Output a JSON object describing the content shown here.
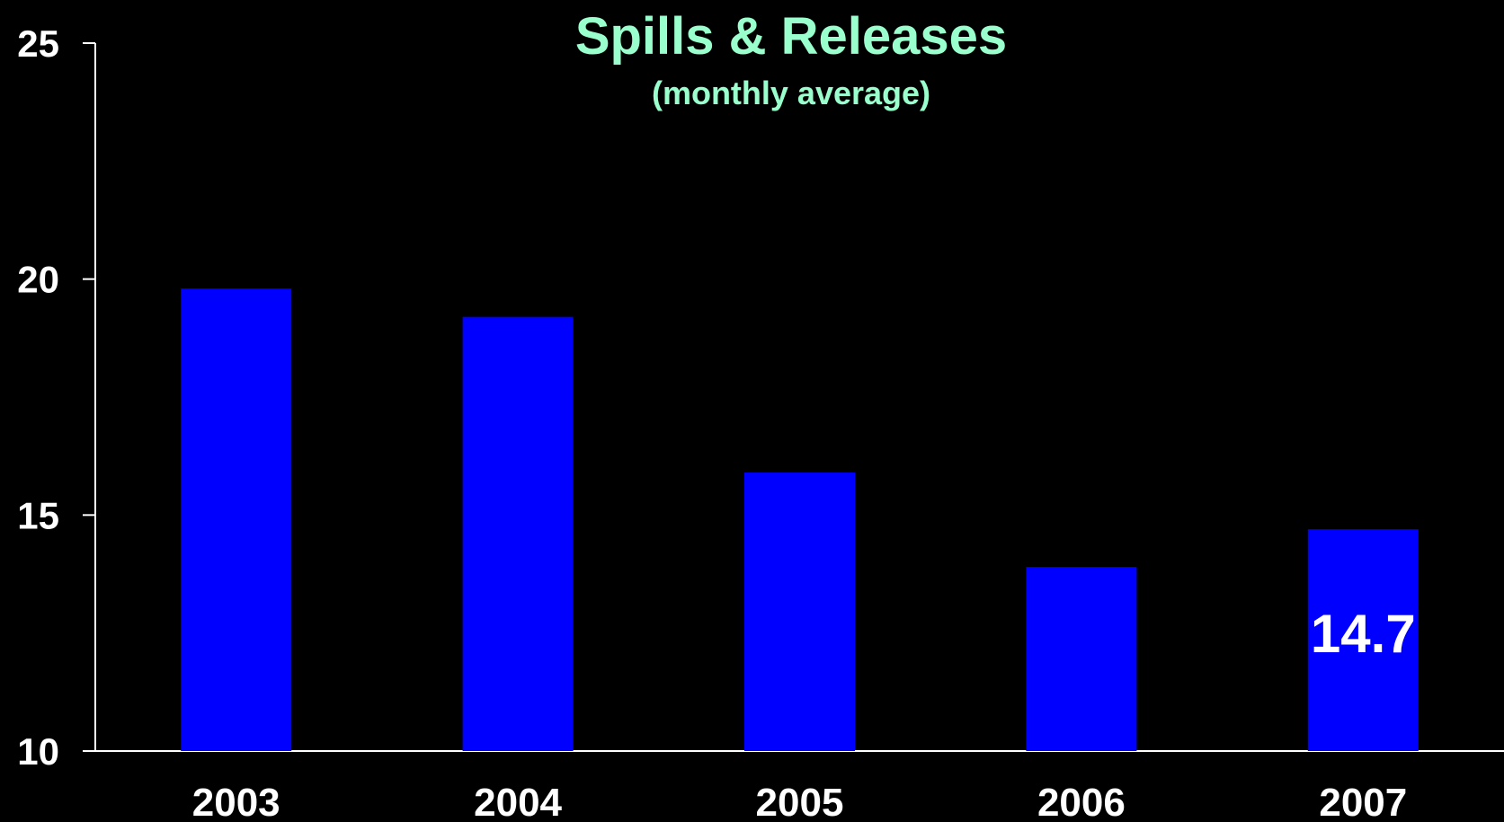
{
  "chart_data": {
    "type": "bar",
    "title": "Spills & Releases",
    "subtitle": "(monthly average)",
    "categories": [
      "2003",
      "2004",
      "2005",
      "2006",
      "2007"
    ],
    "values": [
      19.8,
      19.2,
      15.9,
      13.9,
      14.7
    ],
    "data_labels": [
      "",
      "",
      "",
      "",
      "14.7"
    ],
    "ylim": [
      10,
      25
    ],
    "yticks": [
      "10",
      "15",
      "20",
      "25"
    ],
    "xlabel": "",
    "ylabel": "",
    "grid": false,
    "colors": {
      "background": "#000000",
      "bar": "#0000FF",
      "title": "#99FFCC",
      "axis": "#FFFFFF",
      "text": "#FFFFFF"
    }
  }
}
